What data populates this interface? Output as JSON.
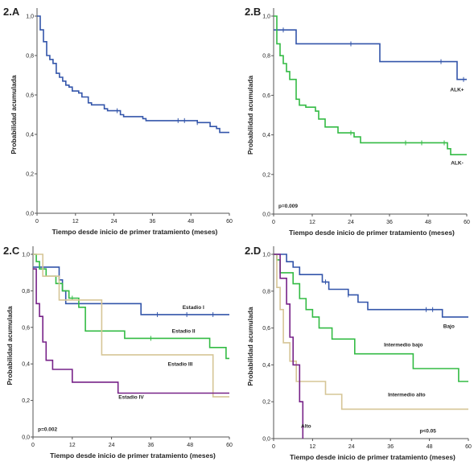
{
  "colors": {
    "blue": "#3355aa",
    "green": "#33bb44",
    "tan": "#d6c596",
    "purple": "#772288",
    "axis": "#555555",
    "text": "#222222"
  },
  "chart_data": [
    {
      "type": "line",
      "subtype": "kaplan-meier step",
      "panel_label": "2.A",
      "xlabel": "Tiempo desde inicio de primer tratamiento (meses)",
      "ylabel": "Probabilidad acumulada",
      "xlim": [
        0,
        60
      ],
      "ylim": [
        0,
        1
      ],
      "x_ticks": [
        "0",
        "12",
        "24",
        "36",
        "48",
        "60"
      ],
      "y_ticks": [
        "0,0",
        "0,2",
        "0,4",
        "0,6",
        "0,8",
        "1,0"
      ],
      "p_value": "",
      "series": [
        {
          "name": "",
          "color_key": "blue",
          "label_pos": null,
          "points": [
            [
              0,
              1.0
            ],
            [
              1,
              0.97
            ],
            [
              1,
              0.93
            ],
            [
              2,
              0.9
            ],
            [
              2,
              0.87
            ],
            [
              3,
              0.84
            ],
            [
              3,
              0.8
            ],
            [
              4,
              0.78
            ],
            [
              5,
              0.76
            ],
            [
              6,
              0.74
            ],
            [
              6,
              0.71
            ],
            [
              7,
              0.69
            ],
            [
              8,
              0.67
            ],
            [
              9,
              0.65
            ],
            [
              10,
              0.64
            ],
            [
              11,
              0.62
            ],
            [
              13,
              0.61
            ],
            [
              14,
              0.59
            ],
            [
              16,
              0.58
            ],
            [
              16,
              0.56
            ],
            [
              17,
              0.55
            ],
            [
              21,
              0.53
            ],
            [
              22,
              0.52
            ],
            [
              26,
              0.5
            ],
            [
              27,
              0.49
            ],
            [
              33,
              0.48
            ],
            [
              34,
              0.47
            ],
            [
              50,
              0.46
            ],
            [
              54,
              0.44
            ],
            [
              56,
              0.43
            ],
            [
              57,
              0.41
            ],
            [
              60,
              0.41
            ]
          ],
          "censored": [
            [
              25,
              0.52
            ],
            [
              44,
              0.47
            ],
            [
              46,
              0.47
            ],
            [
              50,
              0.46
            ]
          ]
        }
      ]
    },
    {
      "type": "line",
      "subtype": "kaplan-meier step",
      "panel_label": "2.B",
      "xlabel": "Tiempo desde inicio de primer tratamiento (meses)",
      "ylabel": "Probabilidad acumulada",
      "xlim": [
        0,
        60
      ],
      "ylim": [
        0,
        1
      ],
      "x_ticks": [
        "0",
        "12",
        "24",
        "36",
        "48",
        "60"
      ],
      "y_ticks": [
        "0,0",
        "0,2",
        "0,4",
        "0,6",
        "0,8",
        "1,0"
      ],
      "p_value": "p=0.009",
      "series": [
        {
          "name": "ALK+",
          "color_key": "blue",
          "label_pos": [
            57,
            0.62
          ],
          "points": [
            [
              0,
              0.93
            ],
            [
              7,
              0.93
            ],
            [
              7,
              0.86
            ],
            [
              33,
              0.86
            ],
            [
              33,
              0.77
            ],
            [
              57,
              0.77
            ],
            [
              57,
              0.68
            ],
            [
              60,
              0.68
            ]
          ],
          "censored": [
            [
              3,
              0.93
            ],
            [
              24,
              0.86
            ],
            [
              52,
              0.77
            ],
            [
              59,
              0.68
            ]
          ]
        },
        {
          "name": "ALK-",
          "color_key": "green",
          "label_pos": [
            57,
            0.25
          ],
          "points": [
            [
              0,
              1.0
            ],
            [
              1,
              0.96
            ],
            [
              1,
              0.86
            ],
            [
              2,
              0.8
            ],
            [
              3,
              0.76
            ],
            [
              4,
              0.72
            ],
            [
              5,
              0.68
            ],
            [
              7,
              0.64
            ],
            [
              7,
              0.58
            ],
            [
              8,
              0.55
            ],
            [
              10,
              0.54
            ],
            [
              13,
              0.52
            ],
            [
              14,
              0.48
            ],
            [
              16,
              0.44
            ],
            [
              20,
              0.41
            ],
            [
              25,
              0.39
            ],
            [
              27,
              0.36
            ],
            [
              54,
              0.33
            ],
            [
              55,
              0.3
            ],
            [
              60,
              0.3
            ]
          ],
          "censored": [
            [
              1,
              0.96
            ],
            [
              24,
              0.41
            ],
            [
              41,
              0.36
            ],
            [
              46,
              0.36
            ],
            [
              53,
              0.36
            ]
          ]
        }
      ]
    },
    {
      "type": "line",
      "subtype": "kaplan-meier step",
      "panel_label": "2.C",
      "xlabel": "Tiempo desde inicio de primer tratamiento (meses)",
      "ylabel": "Probabilidad acumulada",
      "xlim": [
        0,
        60
      ],
      "ylim": [
        0,
        1
      ],
      "x_ticks": [
        "0",
        "12",
        "24",
        "36",
        "48",
        "60"
      ],
      "y_ticks": [
        "0,0",
        "0,2",
        "0,4",
        "0,6",
        "0,8",
        "1,0"
      ],
      "p_value": "p=0.002",
      "series": [
        {
          "name": "Estadio I",
          "color_key": "blue",
          "label_pos": [
            49,
            0.7
          ],
          "points": [
            [
              0,
              0.93
            ],
            [
              8,
              0.93
            ],
            [
              8,
              0.86
            ],
            [
              9,
              0.8
            ],
            [
              10,
              0.73
            ],
            [
              33,
              0.73
            ],
            [
              33,
              0.67
            ],
            [
              60,
              0.67
            ]
          ],
          "censored": [
            [
              3,
              0.93
            ],
            [
              38,
              0.67
            ],
            [
              47,
              0.67
            ],
            [
              55,
              0.67
            ]
          ]
        },
        {
          "name": "Estadio II",
          "color_key": "green",
          "label_pos": [
            46,
            0.57
          ],
          "points": [
            [
              0,
              1.0
            ],
            [
              1,
              0.96
            ],
            [
              2,
              0.92
            ],
            [
              4,
              0.88
            ],
            [
              7,
              0.84
            ],
            [
              9,
              0.8
            ],
            [
              11,
              0.76
            ],
            [
              14,
              0.71
            ],
            [
              16,
              0.63
            ],
            [
              16,
              0.58
            ],
            [
              27,
              0.58
            ],
            [
              28,
              0.54
            ],
            [
              53,
              0.54
            ],
            [
              54,
              0.49
            ],
            [
              58,
              0.49
            ],
            [
              59,
              0.43
            ],
            [
              60,
              0.43
            ]
          ],
          "censored": [
            [
              12,
              0.76
            ],
            [
              36,
              0.54
            ]
          ]
        },
        {
          "name": "Estadio III",
          "color_key": "tan",
          "label_pos": [
            45,
            0.39
          ],
          "points": [
            [
              0,
              1.0
            ],
            [
              3,
              1.0
            ],
            [
              3,
              0.88
            ],
            [
              8,
              0.88
            ],
            [
              8,
              0.75
            ],
            [
              21,
              0.75
            ],
            [
              21,
              0.45
            ],
            [
              55,
              0.45
            ],
            [
              55,
              0.22
            ],
            [
              60,
              0.22
            ]
          ],
          "censored": []
        },
        {
          "name": "Estadio IV",
          "color_key": "purple",
          "label_pos": [
            30,
            0.21
          ],
          "points": [
            [
              0,
              0.92
            ],
            [
              1,
              0.86
            ],
            [
              1,
              0.73
            ],
            [
              2,
              0.66
            ],
            [
              3,
              0.52
            ],
            [
              4,
              0.42
            ],
            [
              6,
              0.37
            ],
            [
              12,
              0.37
            ],
            [
              12,
              0.3
            ],
            [
              26,
              0.3
            ],
            [
              26,
              0.24
            ],
            [
              60,
              0.24
            ]
          ],
          "censored": []
        }
      ]
    },
    {
      "type": "line",
      "subtype": "kaplan-meier step",
      "panel_label": "2.D",
      "xlabel": "Tiempo desde inicio de primer tratamiento (meses)",
      "ylabel": "Probabilidad acumulada",
      "xlim": [
        0,
        60
      ],
      "ylim": [
        0,
        1
      ],
      "x_ticks": [
        "0",
        "12",
        "24",
        "36",
        "48",
        "60"
      ],
      "y_ticks": [
        "0,0",
        "0,2",
        "0,4",
        "0,6",
        "0,8",
        "1,0"
      ],
      "p_value": "p<0.05",
      "series": [
        {
          "name": "Bajo",
          "color_key": "blue",
          "label_pos": [
            54,
            0.6
          ],
          "points": [
            [
              0,
              1.0
            ],
            [
              4,
              1.0
            ],
            [
              4,
              0.96
            ],
            [
              6,
              0.93
            ],
            [
              8,
              0.89
            ],
            [
              15,
              0.85
            ],
            [
              17,
              0.81
            ],
            [
              23,
              0.78
            ],
            [
              26,
              0.74
            ],
            [
              29,
              0.7
            ],
            [
              50,
              0.7
            ],
            [
              52,
              0.66
            ],
            [
              60,
              0.66
            ]
          ],
          "censored": [
            [
              16,
              0.85
            ],
            [
              23,
              0.78
            ],
            [
              47,
              0.7
            ],
            [
              49,
              0.7
            ]
          ]
        },
        {
          "name": "Intermedio bajo",
          "color_key": "green",
          "label_pos": [
            40,
            0.5
          ],
          "points": [
            [
              0,
              1.0
            ],
            [
              1,
              0.97
            ],
            [
              2,
              0.9
            ],
            [
              6,
              0.9
            ],
            [
              6,
              0.84
            ],
            [
              8,
              0.76
            ],
            [
              10,
              0.7
            ],
            [
              12,
              0.66
            ],
            [
              14,
              0.6
            ],
            [
              18,
              0.54
            ],
            [
              23,
              0.54
            ],
            [
              25,
              0.46
            ],
            [
              41,
              0.46
            ],
            [
              43,
              0.38
            ],
            [
              55,
              0.38
            ],
            [
              57,
              0.31
            ],
            [
              60,
              0.31
            ]
          ],
          "censored": []
        },
        {
          "name": "Intermedio alto",
          "color_key": "tan",
          "label_pos": [
            41,
            0.23
          ],
          "points": [
            [
              0,
              1.0
            ],
            [
              1,
              0.82
            ],
            [
              2,
              0.7
            ],
            [
              3,
              0.52
            ],
            [
              5,
              0.42
            ],
            [
              7,
              0.31
            ],
            [
              16,
              0.31
            ],
            [
              16,
              0.24
            ],
            [
              21,
              0.24
            ],
            [
              21,
              0.16
            ],
            [
              60,
              0.16
            ]
          ],
          "censored": []
        },
        {
          "name": "Alto",
          "color_key": "purple",
          "label_pos": [
            10,
            0.06
          ],
          "points": [
            [
              0,
              1.0
            ],
            [
              2,
              1.0
            ],
            [
              2,
              0.87
            ],
            [
              4,
              0.73
            ],
            [
              5,
              0.55
            ],
            [
              6,
              0.4
            ],
            [
              8,
              0.35
            ],
            [
              8,
              0.2
            ],
            [
              9,
              0.0
            ]
          ],
          "censored": []
        }
      ]
    }
  ]
}
